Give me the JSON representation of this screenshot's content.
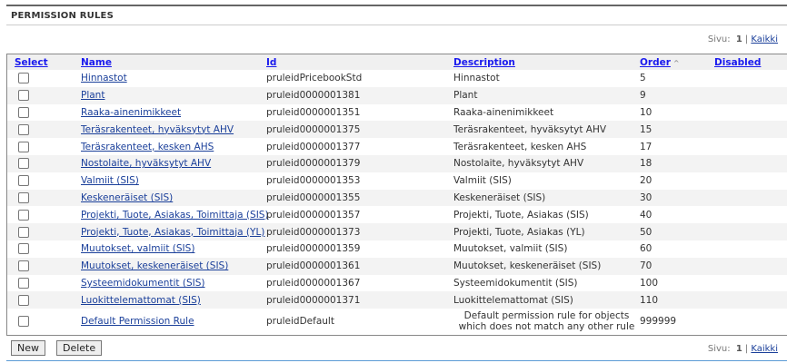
{
  "title": "PERMISSION RULES",
  "pager": {
    "label": "Sivu:",
    "page": "1",
    "separator": "|",
    "all": "Kaikki"
  },
  "columns": {
    "select": "Select",
    "name": "Name",
    "id": "Id",
    "description": "Description",
    "order": "Order",
    "disabled": "Disabled"
  },
  "sort": {
    "column": "Order",
    "direction": "ascending",
    "icon": "chevron-up-icon"
  },
  "rows": [
    {
      "name": "Hinnastot",
      "id": "pruleidPricebookStd",
      "description": "Hinnastot",
      "order": "5",
      "disabled": ""
    },
    {
      "name": "Plant",
      "id": "pruleid0000001381",
      "description": "Plant",
      "order": "9",
      "disabled": ""
    },
    {
      "name": "Raaka-ainenimikkeet",
      "id": "pruleid0000001351",
      "description": "Raaka-ainenimikkeet",
      "order": "10",
      "disabled": ""
    },
    {
      "name": "Teräsrakenteet, hyväksytyt AHV",
      "id": "pruleid0000001375",
      "description": "Teräsrakenteet, hyväksytyt AHV",
      "order": "15",
      "disabled": ""
    },
    {
      "name": "Teräsrakenteet, kesken AHS",
      "id": "pruleid0000001377",
      "description": "Teräsrakenteet, kesken AHS",
      "order": "17",
      "disabled": ""
    },
    {
      "name": "Nostolaite, hyväksytyt AHV",
      "id": "pruleid0000001379",
      "description": "Nostolaite, hyväksytyt AHV",
      "order": "18",
      "disabled": ""
    },
    {
      "name": "Valmiit (SIS)",
      "id": "pruleid0000001353",
      "description": "Valmiit (SIS)",
      "order": "20",
      "disabled": ""
    },
    {
      "name": "Keskeneräiset (SIS)",
      "id": "pruleid0000001355",
      "description": "Keskeneräiset (SIS)",
      "order": "30",
      "disabled": ""
    },
    {
      "name": "Projekti, Tuote, Asiakas, Toimittaja (SIS)",
      "id": "pruleid0000001357",
      "description": "Projekti, Tuote, Asiakas (SIS)",
      "order": "40",
      "disabled": ""
    },
    {
      "name": "Projekti, Tuote, Asiakas, Toimittaja (YL)",
      "id": "pruleid0000001373",
      "description": "Projekti, Tuote, Asiakas (YL)",
      "order": "50",
      "disabled": ""
    },
    {
      "name": "Muutokset, valmiit (SIS)",
      "id": "pruleid0000001359",
      "description": "Muutokset, valmiit (SIS)",
      "order": "60",
      "disabled": ""
    },
    {
      "name": "Muutokset, keskeneräiset (SIS)",
      "id": "pruleid0000001361",
      "description": "Muutokset, keskeneräiset (SIS)",
      "order": "70",
      "disabled": ""
    },
    {
      "name": "Systeemidokumentit (SIS)",
      "id": "pruleid0000001367",
      "description": "Systeemidokumentit (SIS)",
      "order": "100",
      "disabled": ""
    },
    {
      "name": "Luokittelemattomat (SIS)",
      "id": "pruleid0000001371",
      "description": "Luokittelemattomat (SIS)",
      "order": "110",
      "disabled": ""
    },
    {
      "name": "Default Permission Rule",
      "id": "pruleidDefault",
      "description": "Default permission rule for objects which does not match any other rule",
      "order": "999999",
      "disabled": ""
    }
  ],
  "buttons": {
    "new": "New",
    "delete": "Delete"
  }
}
